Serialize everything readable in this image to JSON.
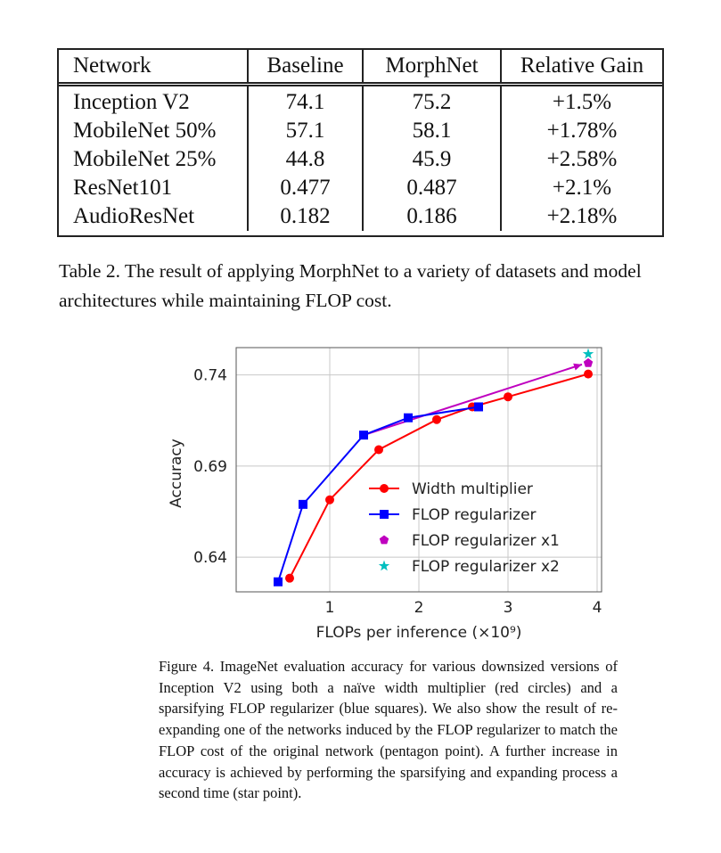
{
  "table": {
    "headers": [
      "Network",
      "Baseline",
      "MorphNet",
      "Relative Gain"
    ],
    "rows": [
      [
        "Inception V2",
        "74.1",
        "75.2",
        "+1.5%"
      ],
      [
        "MobileNet 50%",
        "57.1",
        "58.1",
        "+1.78%"
      ],
      [
        "MobileNet 25%",
        "44.8",
        "45.9",
        "+2.58%"
      ],
      [
        "ResNet101",
        "0.477",
        "0.487",
        "+2.1%"
      ],
      [
        "AudioResNet",
        "0.182",
        "0.186",
        "+2.18%"
      ]
    ],
    "caption": "Table 2. The result of applying MorphNet to a variety of datasets and model architectures while maintaining FLOP cost."
  },
  "figure_caption": "Figure 4. ImageNet evaluation accuracy for various downsized versions of Inception V2 using both a naïve width multiplier (red circles) and a sparsifying FLOP regularizer (blue squares). We also show the result of re-expanding one of the networks induced by the FLOP regularizer to match the FLOP cost of the original network (pentagon point). A further increase in accuracy is achieved by performing the sparsifying and expanding process a second time (star point).",
  "chart_data": {
    "type": "line",
    "xlabel": "FLOPs per inference (×10⁹)",
    "ylabel": "Accuracy",
    "xlim": [
      -0.05,
      4.05
    ],
    "ylim": [
      0.621,
      0.755
    ],
    "xticks": [
      1,
      2,
      3,
      4
    ],
    "yticks": [
      0.64,
      0.69,
      0.74
    ],
    "ytick_labels": [
      "0.64",
      "0.69",
      "0.74"
    ],
    "legend_position": "lower-right",
    "series": [
      {
        "name": "Width multiplier",
        "color": "#ff0000",
        "marker": "circle",
        "x": [
          0.55,
          1.0,
          1.55,
          2.2,
          2.6,
          3.0,
          3.9
        ],
        "y": [
          0.6285,
          0.6715,
          0.699,
          0.7155,
          0.7225,
          0.728,
          0.7405
        ]
      },
      {
        "name": "FLOP regularizer",
        "color": "#0000ff",
        "marker": "square",
        "x": [
          0.42,
          0.7,
          1.38,
          1.88,
          2.67
        ],
        "y": [
          0.6265,
          0.669,
          0.707,
          0.7165,
          0.7225
        ]
      },
      {
        "name": "FLOP regularizer x1",
        "color": "#bf00bf",
        "marker": "pentagon",
        "x": [
          3.9
        ],
        "y": [
          0.7465
        ]
      },
      {
        "name": "FLOP regularizer x2",
        "color": "#00bfbf",
        "marker": "star",
        "x": [
          3.9
        ],
        "y": [
          0.7515
        ]
      }
    ],
    "expansion_path": {
      "color": "#bf00bf",
      "x": [
        1.38,
        3.9
      ],
      "y": [
        0.707,
        0.7465
      ]
    }
  }
}
